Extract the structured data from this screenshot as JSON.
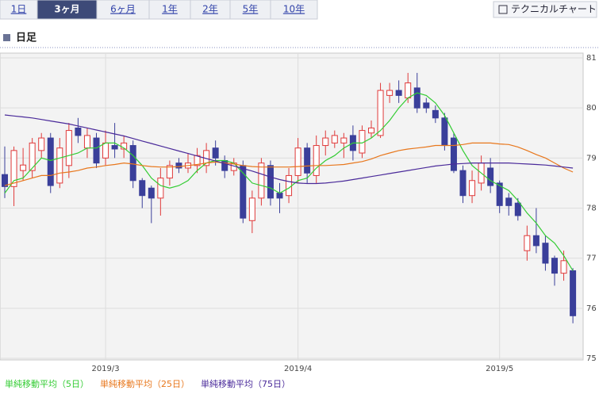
{
  "tabs": [
    "1日",
    "3ヶ月",
    "6ヶ月",
    "1年",
    "2年",
    "5年",
    "10年"
  ],
  "button": "テクニカルチャート",
  "heading": "日足",
  "chart_data": {
    "type": "candlestick",
    "categories": [
      null,
      null,
      null,
      null,
      null,
      null,
      null,
      null,
      null,
      null,
      null,
      "2019/3",
      null,
      null,
      null,
      null,
      null,
      null,
      null,
      null,
      null,
      null,
      null,
      null,
      null,
      null,
      null,
      null,
      null,
      null,
      null,
      null,
      "2019/4",
      null,
      null,
      null,
      null,
      null,
      null,
      null,
      null,
      null,
      null,
      null,
      null,
      null,
      null,
      null,
      null,
      null,
      null,
      null,
      null,
      null,
      "2019/5",
      null,
      null,
      null,
      null,
      null,
      null,
      null,
      null
    ],
    "open": [
      78.67,
      78.43,
      78.75,
      78.75,
      79.15,
      79.4,
      78.5,
      78.85,
      79.6,
      79.2,
      79.4,
      79.0,
      79.25,
      79.18,
      79.25,
      78.55,
      78.4,
      78.2,
      78.6,
      78.9,
      78.8,
      78.85,
      78.85,
      79.2,
      78.95,
      78.75,
      78.85,
      77.75,
      78.2,
      78.85,
      78.3,
      78.25,
      78.65,
      79.2,
      78.65,
      79.25,
      79.3,
      79.3,
      79.45,
      79.1,
      79.5,
      79.45,
      80.25,
      80.35,
      80.2,
      80.4,
      80.1,
      79.95,
      79.8,
      79.4,
      78.75,
      78.25,
      78.5,
      78.8,
      78.5,
      78.2,
      78.1,
      77.15,
      77.45,
      77.3,
      77.0,
      76.7,
      76.75
    ],
    "high": [
      79.23,
      79.23,
      79.2,
      79.4,
      79.5,
      79.5,
      79.4,
      79.7,
      79.8,
      79.6,
      79.5,
      79.55,
      79.7,
      79.45,
      79.35,
      78.6,
      78.45,
      78.8,
      78.95,
      79.0,
      79.1,
      79.2,
      79.3,
      79.35,
      79.05,
      79.0,
      78.95,
      78.35,
      79.0,
      78.95,
      78.5,
      78.8,
      79.4,
      79.3,
      79.45,
      79.55,
      79.55,
      79.5,
      79.65,
      79.65,
      79.75,
      80.5,
      80.5,
      80.55,
      80.7,
      80.7,
      80.2,
      80.05,
      79.9,
      79.5,
      78.85,
      78.75,
      79.05,
      79.0,
      78.55,
      78.3,
      78.2,
      77.65,
      78.0,
      77.45,
      77.05,
      77.15,
      76.8
    ],
    "low": [
      78.2,
      78.04,
      78.55,
      78.6,
      79.0,
      78.3,
      78.4,
      78.6,
      79.3,
      79.0,
      78.8,
      78.85,
      79.0,
      79.0,
      78.4,
      78.0,
      77.7,
      77.85,
      78.45,
      78.7,
      78.7,
      78.7,
      78.7,
      78.85,
      78.6,
      78.65,
      77.7,
      77.5,
      78.05,
      78.05,
      77.9,
      78.1,
      78.5,
      78.5,
      78.5,
      79.05,
      79.2,
      79.0,
      78.95,
      79.0,
      79.4,
      79.4,
      80.1,
      80.1,
      80.1,
      79.9,
      79.9,
      79.7,
      79.15,
      78.7,
      78.1,
      78.1,
      78.35,
      78.3,
      77.9,
      77.85,
      77.75,
      76.95,
      77.1,
      76.75,
      76.45,
      76.55,
      75.7
    ],
    "close": [
      78.43,
      79.15,
      78.86,
      79.3,
      79.4,
      78.45,
      79.2,
      79.55,
      79.45,
      79.45,
      78.9,
      79.3,
      79.18,
      79.3,
      78.55,
      78.25,
      78.2,
      78.6,
      78.85,
      78.8,
      78.9,
      79.05,
      79.15,
      79.0,
      78.75,
      78.9,
      77.8,
      78.2,
      78.9,
      78.2,
      78.2,
      78.65,
      79.2,
      78.7,
      79.25,
      79.4,
      79.45,
      79.4,
      79.15,
      79.55,
      79.6,
      80.35,
      80.35,
      80.25,
      80.5,
      80.0,
      80.0,
      79.8,
      79.25,
      78.75,
      78.25,
      78.55,
      78.9,
      78.45,
      78.05,
      78.05,
      77.85,
      77.45,
      77.25,
      76.9,
      76.7,
      76.95,
      75.85
    ],
    "up_color": "#e03a3a",
    "down_color": "#3a3f9a",
    "series": [
      {
        "name": "単純移動平均（5日）",
        "color": "#33cc33",
        "values": [
          78.3,
          78.55,
          78.6,
          78.8,
          79.0,
          78.95,
          79.0,
          79.05,
          79.1,
          79.2,
          79.2,
          79.3,
          79.3,
          79.2,
          79.05,
          78.85,
          78.6,
          78.45,
          78.4,
          78.45,
          78.55,
          78.75,
          78.9,
          78.95,
          78.95,
          78.9,
          78.7,
          78.5,
          78.45,
          78.4,
          78.3,
          78.4,
          78.55,
          78.6,
          78.8,
          78.95,
          79.05,
          79.2,
          79.3,
          79.3,
          79.4,
          79.55,
          79.75,
          80.0,
          80.2,
          80.3,
          80.25,
          80.1,
          79.85,
          79.5,
          79.15,
          78.85,
          78.7,
          78.55,
          78.45,
          78.35,
          78.15,
          77.9,
          77.7,
          77.45,
          77.3,
          77.05,
          76.75
        ]
      },
      {
        "name": "単純移動平均（25日）",
        "color": "#e8771c",
        "values": [
          78.45,
          78.5,
          78.55,
          78.6,
          78.65,
          78.65,
          78.7,
          78.72,
          78.75,
          78.8,
          78.82,
          78.85,
          78.87,
          78.9,
          78.88,
          78.85,
          78.83,
          78.82,
          78.82,
          78.83,
          78.85,
          78.87,
          78.9,
          78.92,
          78.9,
          78.88,
          78.85,
          78.83,
          78.82,
          78.82,
          78.82,
          78.82,
          78.83,
          78.84,
          78.85,
          78.85,
          78.86,
          78.87,
          78.9,
          78.93,
          78.98,
          79.05,
          79.1,
          79.15,
          79.18,
          79.2,
          79.22,
          79.25,
          79.25,
          79.25,
          79.27,
          79.3,
          79.3,
          79.3,
          79.28,
          79.27,
          79.22,
          79.15,
          79.07,
          79.0,
          78.9,
          78.8,
          78.72
        ]
      },
      {
        "name": "単純移動平均（75日）",
        "color": "#4a2a9a",
        "values": [
          79.86,
          79.84,
          79.82,
          79.8,
          79.77,
          79.74,
          79.71,
          79.68,
          79.64,
          79.6,
          79.56,
          79.52,
          79.48,
          79.44,
          79.39,
          79.34,
          79.29,
          79.24,
          79.19,
          79.14,
          79.09,
          79.04,
          78.99,
          78.94,
          78.89,
          78.84,
          78.79,
          78.74,
          78.68,
          78.62,
          78.57,
          78.53,
          78.5,
          78.49,
          78.49,
          78.5,
          78.52,
          78.54,
          78.57,
          78.6,
          78.63,
          78.66,
          78.69,
          78.72,
          78.75,
          78.78,
          78.81,
          78.84,
          78.86,
          78.88,
          78.89,
          78.9,
          78.9,
          78.9,
          78.9,
          78.9,
          78.89,
          78.88,
          78.87,
          78.86,
          78.84,
          78.82,
          78.8
        ]
      }
    ],
    "ylim": [
      75,
      81
    ],
    "yticks": [
      75,
      76,
      77,
      78,
      79,
      80,
      81
    ],
    "grid": true
  }
}
